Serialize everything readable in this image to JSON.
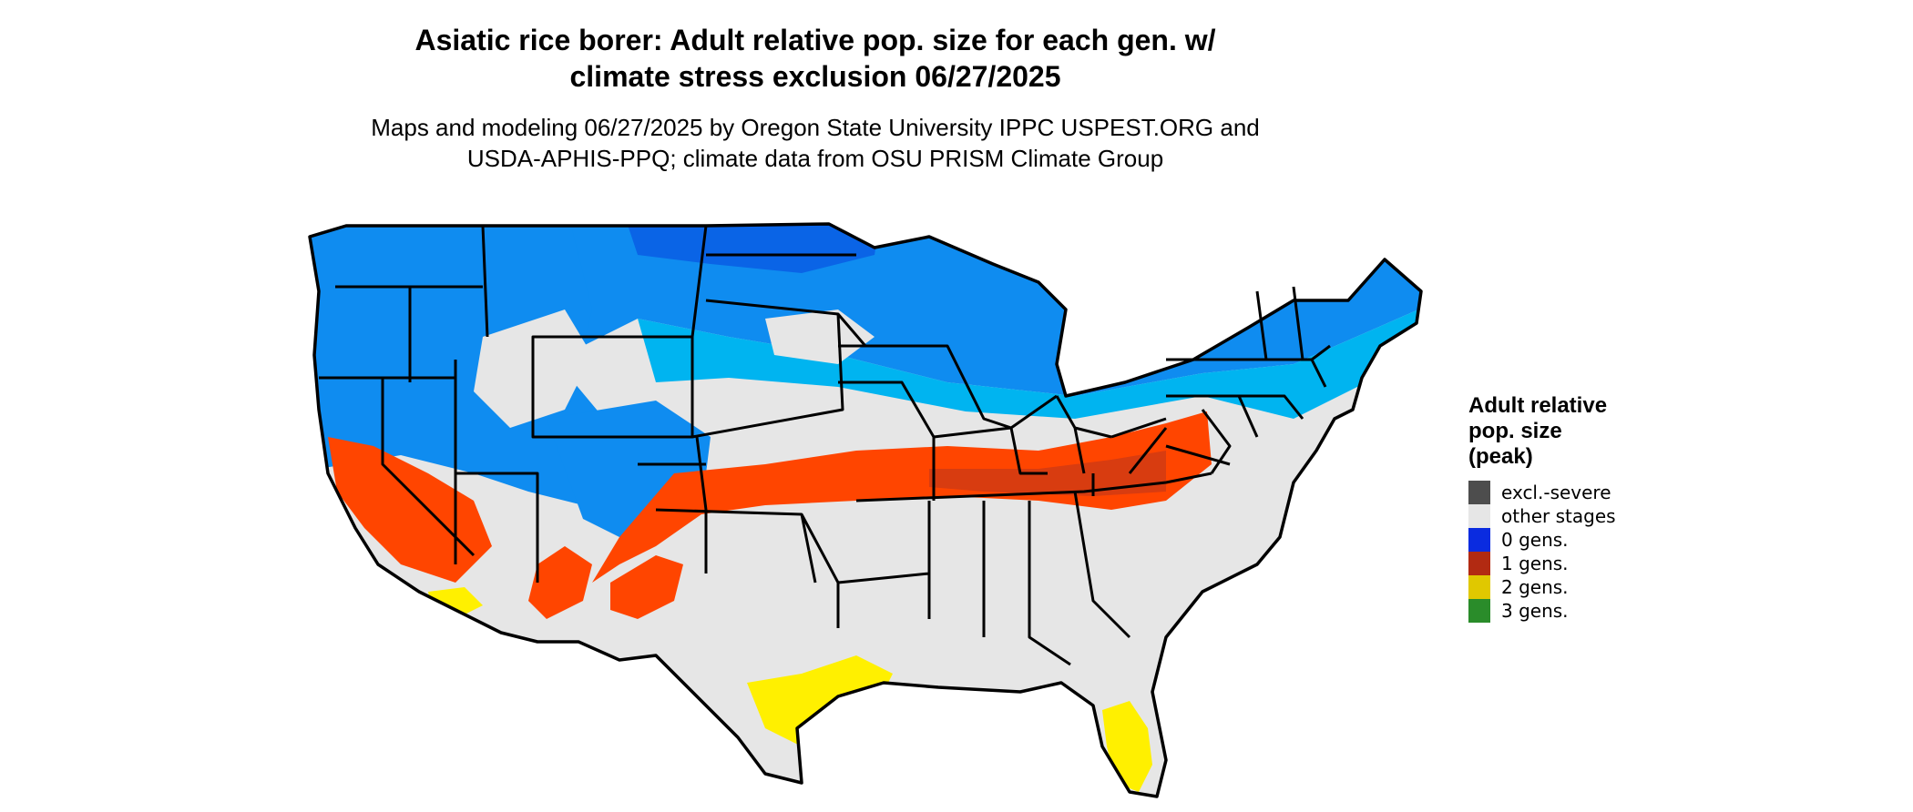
{
  "title_lines": [
    "Asiatic rice borer: Adult relative pop. size for each gen. w/",
    "climate stress exclusion 06/27/2025"
  ],
  "subtitle_lines": [
    "Maps and modeling 06/27/2025 by Oregon State University IPPC USPEST.ORG and",
    "USDA-APHIS-PPQ; climate data from OSU PRISM Climate Group"
  ],
  "legend": {
    "title_lines": [
      "Adult relative",
      "pop. size",
      "(peak)"
    ],
    "items": [
      {
        "label": "excl.-severe",
        "color": "#4d4d4d"
      },
      {
        "label": "other stages",
        "color": "#e6e6e6"
      },
      {
        "label": "0 gens.",
        "color": "#0a2be0"
      },
      {
        "label": "1 gens.",
        "color": "#b22a12"
      },
      {
        "label": "2 gens.",
        "color": "#e0c800"
      },
      {
        "label": "3 gens.",
        "color": "#2a8c2a"
      }
    ]
  },
  "map_colors": {
    "background_land": "#e6e6e6",
    "zero_gens_light": "#00b4f0",
    "zero_gens_mid": "#0f8cf0",
    "zero_gens_dark": "#0a64e6",
    "one_gen": "#ff4500",
    "one_gen_dark": "#d83c10",
    "two_gens": "#fff000",
    "state_border": "#000000"
  }
}
